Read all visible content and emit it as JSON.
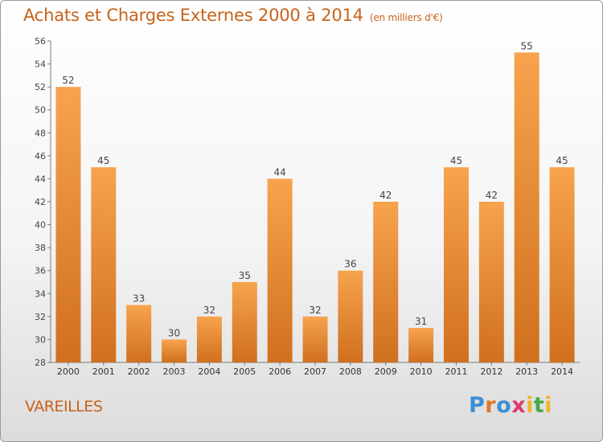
{
  "header": {
    "title": "Achats et Charges Externes 2000 à 2014",
    "subtitle": "(en milliers d'€)"
  },
  "footer": {
    "place": "VAREILLES",
    "logo": "Proxiti"
  },
  "colors": {
    "bar_light": "#f7a34e",
    "bar_dark": "#d0701e",
    "text": "#c8621a"
  },
  "chart_data": {
    "type": "bar",
    "categories": [
      "2000",
      "2001",
      "2002",
      "2003",
      "2004",
      "2005",
      "2006",
      "2007",
      "2008",
      "2009",
      "2010",
      "2011",
      "2012",
      "2013",
      "2014"
    ],
    "values": [
      52,
      45,
      33,
      30,
      32,
      35,
      44,
      32,
      36,
      42,
      31,
      45,
      42,
      55,
      45
    ],
    "title": "Achats et Charges Externes 2000 à 2014",
    "subtitle": "(en milliers d'€)",
    "xlabel": "",
    "ylabel": "",
    "ylim": [
      28,
      56
    ],
    "yticks": [
      28,
      30,
      32,
      34,
      36,
      38,
      40,
      42,
      44,
      46,
      48,
      50,
      52,
      54,
      56
    ],
    "grid": false,
    "data_labels": true
  }
}
